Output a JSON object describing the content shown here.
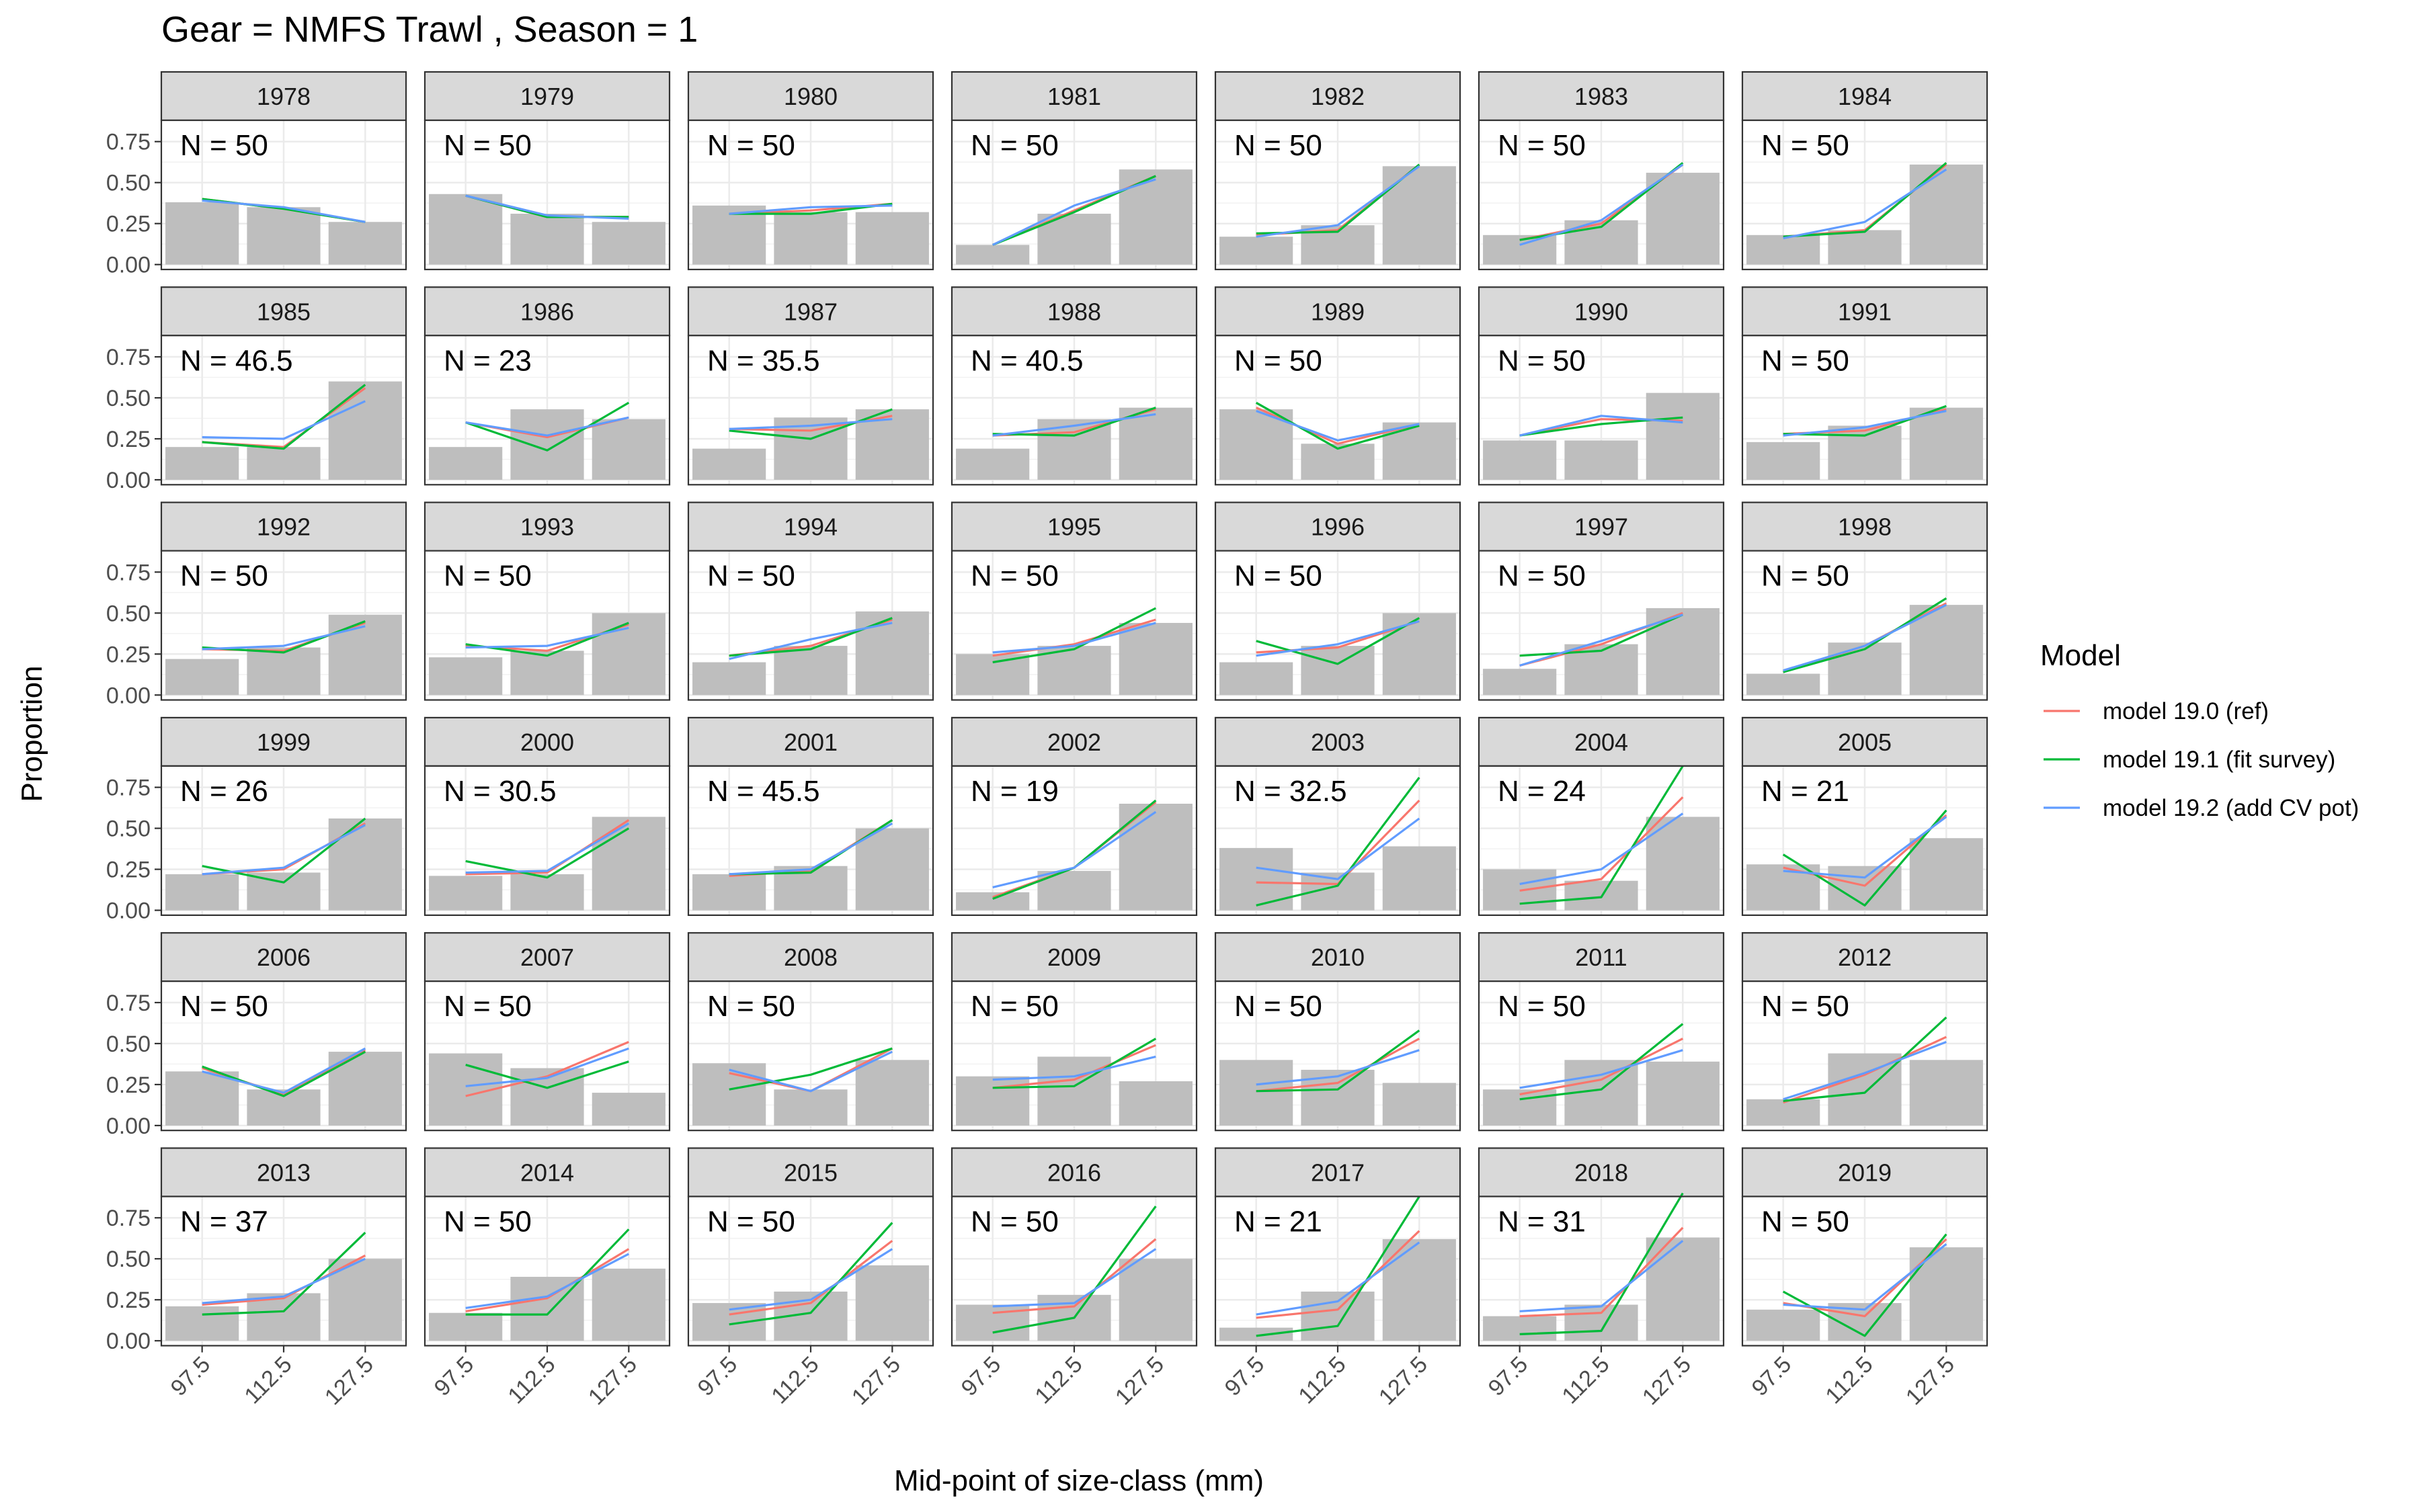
{
  "chart_data": {
    "type": "bar",
    "title": "Gear = NMFS Trawl , Season = 1",
    "xlabel": "Mid-point of size-class (mm)",
    "ylabel": "Proportion",
    "categories": [
      "97.5",
      "112.5",
      "127.5"
    ],
    "y_ticks": [
      "0.00",
      "0.25",
      "0.50",
      "0.75"
    ],
    "ylim": [
      -0.03,
      0.88
    ],
    "grid": true,
    "legend": {
      "title": "Model",
      "position": "right",
      "items": [
        {
          "name": "model 19.0 (ref)",
          "color": "#F8766D"
        },
        {
          "name": "model 19.1 (fit survey)",
          "color": "#00BA38"
        },
        {
          "name": "model 19.2 (add CV pot)",
          "color": "#619CFF"
        }
      ]
    },
    "bar_color": "#BEBEBE",
    "panels": [
      {
        "year": "1978",
        "n_label": "N = 50",
        "observed": [
          0.38,
          0.35,
          0.26
        ],
        "model_19_0": [
          0.4,
          0.34,
          0.26
        ],
        "model_19_1": [
          0.4,
          0.34,
          0.26
        ],
        "model_19_2": [
          0.39,
          0.35,
          0.26
        ]
      },
      {
        "year": "1979",
        "n_label": "N = 50",
        "observed": [
          0.43,
          0.31,
          0.26
        ],
        "model_19_0": [
          0.42,
          0.29,
          0.29
        ],
        "model_19_1": [
          0.42,
          0.29,
          0.29
        ],
        "model_19_2": [
          0.42,
          0.3,
          0.28
        ]
      },
      {
        "year": "1980",
        "n_label": "N = 50",
        "observed": [
          0.36,
          0.32,
          0.32
        ],
        "model_19_0": [
          0.31,
          0.33,
          0.37
        ],
        "model_19_1": [
          0.31,
          0.31,
          0.37
        ],
        "model_19_2": [
          0.31,
          0.35,
          0.36
        ]
      },
      {
        "year": "1981",
        "n_label": "N = 50",
        "observed": [
          0.12,
          0.31,
          0.58
        ],
        "model_19_0": [
          0.12,
          0.33,
          0.54
        ],
        "model_19_1": [
          0.12,
          0.32,
          0.54
        ],
        "model_19_2": [
          0.12,
          0.36,
          0.52
        ]
      },
      {
        "year": "1982",
        "n_label": "N = 50",
        "observed": [
          0.17,
          0.24,
          0.6
        ],
        "model_19_0": [
          0.18,
          0.21,
          0.61
        ],
        "model_19_1": [
          0.19,
          0.2,
          0.61
        ],
        "model_19_2": [
          0.17,
          0.24,
          0.6
        ]
      },
      {
        "year": "1983",
        "n_label": "N = 50",
        "observed": [
          0.18,
          0.27,
          0.56
        ],
        "model_19_0": [
          0.15,
          0.25,
          0.61
        ],
        "model_19_1": [
          0.15,
          0.23,
          0.62
        ],
        "model_19_2": [
          0.12,
          0.27,
          0.61
        ]
      },
      {
        "year": "1984",
        "n_label": "N = 50",
        "observed": [
          0.18,
          0.21,
          0.61
        ],
        "model_19_0": [
          0.17,
          0.21,
          0.61
        ],
        "model_19_1": [
          0.17,
          0.2,
          0.62
        ],
        "model_19_2": [
          0.16,
          0.26,
          0.58
        ]
      },
      {
        "year": "1985",
        "n_label": "N = 46.5",
        "observed": [
          0.2,
          0.2,
          0.6
        ],
        "model_19_0": [
          0.23,
          0.2,
          0.56
        ],
        "model_19_1": [
          0.23,
          0.19,
          0.58
        ],
        "model_19_2": [
          0.26,
          0.25,
          0.48
        ]
      },
      {
        "year": "1986",
        "n_label": "N = 23",
        "observed": [
          0.2,
          0.43,
          0.37
        ],
        "model_19_0": [
          0.35,
          0.26,
          0.38
        ],
        "model_19_1": [
          0.35,
          0.18,
          0.47
        ],
        "model_19_2": [
          0.35,
          0.27,
          0.38
        ]
      },
      {
        "year": "1987",
        "n_label": "N = 35.5",
        "observed": [
          0.19,
          0.38,
          0.43
        ],
        "model_19_0": [
          0.31,
          0.3,
          0.39
        ],
        "model_19_1": [
          0.3,
          0.25,
          0.43
        ],
        "model_19_2": [
          0.31,
          0.33,
          0.37
        ]
      },
      {
        "year": "1988",
        "n_label": "N = 40.5",
        "observed": [
          0.19,
          0.37,
          0.44
        ],
        "model_19_0": [
          0.27,
          0.29,
          0.43
        ],
        "model_19_1": [
          0.28,
          0.27,
          0.44
        ],
        "model_19_2": [
          0.27,
          0.33,
          0.4
        ]
      },
      {
        "year": "1989",
        "n_label": "N = 50",
        "observed": [
          0.43,
          0.22,
          0.35
        ],
        "model_19_0": [
          0.44,
          0.22,
          0.34
        ],
        "model_19_1": [
          0.47,
          0.19,
          0.33
        ],
        "model_19_2": [
          0.42,
          0.24,
          0.34
        ]
      },
      {
        "year": "1990",
        "n_label": "N = 50",
        "observed": [
          0.24,
          0.24,
          0.53
        ],
        "model_19_0": [
          0.27,
          0.37,
          0.36
        ],
        "model_19_1": [
          0.27,
          0.34,
          0.38
        ],
        "model_19_2": [
          0.27,
          0.39,
          0.35
        ]
      },
      {
        "year": "1991",
        "n_label": "N = 50",
        "observed": [
          0.23,
          0.33,
          0.44
        ],
        "model_19_0": [
          0.28,
          0.3,
          0.43
        ],
        "model_19_1": [
          0.28,
          0.27,
          0.45
        ],
        "model_19_2": [
          0.27,
          0.32,
          0.42
        ]
      },
      {
        "year": "1992",
        "n_label": "N = 50",
        "observed": [
          0.22,
          0.29,
          0.49
        ],
        "model_19_0": [
          0.28,
          0.27,
          0.44
        ],
        "model_19_1": [
          0.29,
          0.26,
          0.45
        ],
        "model_19_2": [
          0.28,
          0.3,
          0.42
        ]
      },
      {
        "year": "1993",
        "n_label": "N = 50",
        "observed": [
          0.23,
          0.27,
          0.5
        ],
        "model_19_0": [
          0.3,
          0.27,
          0.43
        ],
        "model_19_1": [
          0.31,
          0.24,
          0.44
        ],
        "model_19_2": [
          0.29,
          0.3,
          0.41
        ]
      },
      {
        "year": "1994",
        "n_label": "N = 50",
        "observed": [
          0.2,
          0.3,
          0.51
        ],
        "model_19_0": [
          0.24,
          0.3,
          0.46
        ],
        "model_19_1": [
          0.24,
          0.28,
          0.47
        ],
        "model_19_2": [
          0.22,
          0.34,
          0.44
        ]
      },
      {
        "year": "1995",
        "n_label": "N = 50",
        "observed": [
          0.25,
          0.3,
          0.44
        ],
        "model_19_0": [
          0.24,
          0.31,
          0.46
        ],
        "model_19_1": [
          0.2,
          0.28,
          0.53
        ],
        "model_19_2": [
          0.26,
          0.3,
          0.44
        ]
      },
      {
        "year": "1996",
        "n_label": "N = 50",
        "observed": [
          0.2,
          0.3,
          0.5
        ],
        "model_19_0": [
          0.26,
          0.29,
          0.45
        ],
        "model_19_1": [
          0.33,
          0.19,
          0.47
        ],
        "model_19_2": [
          0.24,
          0.31,
          0.45
        ]
      },
      {
        "year": "1997",
        "n_label": "N = 50",
        "observed": [
          0.16,
          0.31,
          0.53
        ],
        "model_19_0": [
          0.18,
          0.31,
          0.5
        ],
        "model_19_1": [
          0.24,
          0.27,
          0.49
        ],
        "model_19_2": [
          0.18,
          0.33,
          0.49
        ]
      },
      {
        "year": "1998",
        "n_label": "N = 50",
        "observed": [
          0.13,
          0.32,
          0.55
        ],
        "model_19_0": [
          0.14,
          0.3,
          0.56
        ],
        "model_19_1": [
          0.14,
          0.28,
          0.59
        ],
        "model_19_2": [
          0.15,
          0.3,
          0.55
        ]
      },
      {
        "year": "1999",
        "n_label": "N = 26",
        "observed": [
          0.22,
          0.23,
          0.56
        ],
        "model_19_0": [
          0.22,
          0.25,
          0.53
        ],
        "model_19_1": [
          0.27,
          0.17,
          0.56
        ],
        "model_19_2": [
          0.22,
          0.26,
          0.52
        ]
      },
      {
        "year": "2000",
        "n_label": "N = 30.5",
        "observed": [
          0.21,
          0.22,
          0.57
        ],
        "model_19_0": [
          0.22,
          0.23,
          0.55
        ],
        "model_19_1": [
          0.3,
          0.2,
          0.5
        ],
        "model_19_2": [
          0.23,
          0.24,
          0.53
        ]
      },
      {
        "year": "2001",
        "n_label": "N = 45.5",
        "observed": [
          0.22,
          0.27,
          0.5
        ],
        "model_19_0": [
          0.21,
          0.24,
          0.55
        ],
        "model_19_1": [
          0.22,
          0.23,
          0.55
        ],
        "model_19_2": [
          0.22,
          0.25,
          0.53
        ]
      },
      {
        "year": "2002",
        "n_label": "N = 19",
        "observed": [
          0.11,
          0.24,
          0.65
        ],
        "model_19_0": [
          0.08,
          0.26,
          0.66
        ],
        "model_19_1": [
          0.07,
          0.26,
          0.67
        ],
        "model_19_2": [
          0.14,
          0.26,
          0.6
        ]
      },
      {
        "year": "2003",
        "n_label": "N = 32.5",
        "observed": [
          0.38,
          0.23,
          0.39
        ],
        "model_19_0": [
          0.17,
          0.16,
          0.67
        ],
        "model_19_1": [
          0.03,
          0.15,
          0.81
        ],
        "model_19_2": [
          0.26,
          0.19,
          0.56
        ]
      },
      {
        "year": "2004",
        "n_label": "N = 24",
        "observed": [
          0.25,
          0.18,
          0.57
        ],
        "model_19_0": [
          0.12,
          0.19,
          0.69
        ],
        "model_19_1": [
          0.04,
          0.08,
          0.88
        ],
        "model_19_2": [
          0.16,
          0.25,
          0.59
        ]
      },
      {
        "year": "2005",
        "n_label": "N = 21",
        "observed": [
          0.28,
          0.27,
          0.44
        ],
        "model_19_0": [
          0.26,
          0.15,
          0.58
        ],
        "model_19_1": [
          0.34,
          0.03,
          0.61
        ],
        "model_19_2": [
          0.24,
          0.2,
          0.57
        ]
      },
      {
        "year": "2006",
        "n_label": "N = 50",
        "observed": [
          0.33,
          0.22,
          0.45
        ],
        "model_19_0": [
          0.35,
          0.19,
          0.46
        ],
        "model_19_1": [
          0.36,
          0.18,
          0.45
        ],
        "model_19_2": [
          0.33,
          0.2,
          0.47
        ]
      },
      {
        "year": "2007",
        "n_label": "N = 50",
        "observed": [
          0.44,
          0.35,
          0.2
        ],
        "model_19_0": [
          0.18,
          0.3,
          0.51
        ],
        "model_19_1": [
          0.37,
          0.23,
          0.39
        ],
        "model_19_2": [
          0.24,
          0.29,
          0.47
        ]
      },
      {
        "year": "2008",
        "n_label": "N = 50",
        "observed": [
          0.38,
          0.22,
          0.4
        ],
        "model_19_0": [
          0.32,
          0.21,
          0.47
        ],
        "model_19_1": [
          0.22,
          0.31,
          0.47
        ],
        "model_19_2": [
          0.34,
          0.21,
          0.45
        ]
      },
      {
        "year": "2009",
        "n_label": "N = 50",
        "observed": [
          0.3,
          0.42,
          0.27
        ],
        "model_19_0": [
          0.23,
          0.28,
          0.49
        ],
        "model_19_1": [
          0.23,
          0.24,
          0.53
        ],
        "model_19_2": [
          0.28,
          0.3,
          0.42
        ]
      },
      {
        "year": "2010",
        "n_label": "N = 50",
        "observed": [
          0.4,
          0.34,
          0.26
        ],
        "model_19_0": [
          0.21,
          0.26,
          0.53
        ],
        "model_19_1": [
          0.21,
          0.22,
          0.58
        ],
        "model_19_2": [
          0.25,
          0.3,
          0.46
        ]
      },
      {
        "year": "2011",
        "n_label": "N = 50",
        "observed": [
          0.22,
          0.4,
          0.39
        ],
        "model_19_0": [
          0.19,
          0.28,
          0.53
        ],
        "model_19_1": [
          0.16,
          0.22,
          0.62
        ],
        "model_19_2": [
          0.23,
          0.31,
          0.46
        ]
      },
      {
        "year": "2012",
        "n_label": "N = 50",
        "observed": [
          0.16,
          0.44,
          0.4
        ],
        "model_19_0": [
          0.14,
          0.31,
          0.54
        ],
        "model_19_1": [
          0.15,
          0.2,
          0.66
        ],
        "model_19_2": [
          0.16,
          0.32,
          0.51
        ]
      },
      {
        "year": "2013",
        "n_label": "N = 37",
        "observed": [
          0.21,
          0.29,
          0.5
        ],
        "model_19_0": [
          0.22,
          0.26,
          0.52
        ],
        "model_19_1": [
          0.16,
          0.18,
          0.66
        ],
        "model_19_2": [
          0.23,
          0.27,
          0.5
        ]
      },
      {
        "year": "2014",
        "n_label": "N = 50",
        "observed": [
          0.17,
          0.39,
          0.44
        ],
        "model_19_0": [
          0.18,
          0.26,
          0.56
        ],
        "model_19_1": [
          0.16,
          0.16,
          0.68
        ],
        "model_19_2": [
          0.2,
          0.27,
          0.53
        ]
      },
      {
        "year": "2015",
        "n_label": "N = 50",
        "observed": [
          0.23,
          0.3,
          0.46
        ],
        "model_19_0": [
          0.16,
          0.23,
          0.61
        ],
        "model_19_1": [
          0.1,
          0.17,
          0.72
        ],
        "model_19_2": [
          0.19,
          0.25,
          0.56
        ]
      },
      {
        "year": "2016",
        "n_label": "N = 50",
        "observed": [
          0.22,
          0.28,
          0.5
        ],
        "model_19_0": [
          0.17,
          0.21,
          0.62
        ],
        "model_19_1": [
          0.05,
          0.14,
          0.82
        ],
        "model_19_2": [
          0.21,
          0.23,
          0.56
        ]
      },
      {
        "year": "2017",
        "n_label": "N = 21",
        "observed": [
          0.08,
          0.3,
          0.62
        ],
        "model_19_0": [
          0.14,
          0.19,
          0.67
        ],
        "model_19_1": [
          0.03,
          0.09,
          0.88
        ],
        "model_19_2": [
          0.16,
          0.24,
          0.6
        ]
      },
      {
        "year": "2018",
        "n_label": "N = 31",
        "observed": [
          0.15,
          0.22,
          0.63
        ],
        "model_19_0": [
          0.15,
          0.17,
          0.69
        ],
        "model_19_1": [
          0.04,
          0.06,
          0.9
        ],
        "model_19_2": [
          0.18,
          0.21,
          0.61
        ]
      },
      {
        "year": "2019",
        "n_label": "N = 50",
        "observed": [
          0.19,
          0.23,
          0.57
        ],
        "model_19_0": [
          0.23,
          0.15,
          0.62
        ],
        "model_19_1": [
          0.3,
          0.03,
          0.65
        ],
        "model_19_2": [
          0.22,
          0.19,
          0.59
        ]
      }
    ]
  }
}
